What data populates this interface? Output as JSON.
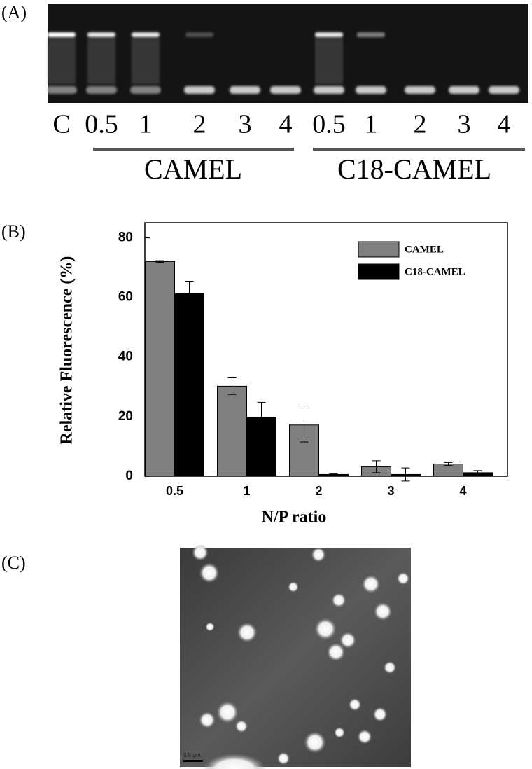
{
  "panel_labels": [
    "(A)",
    "(B)",
    "(C)"
  ],
  "gel": {
    "lanes": [
      "C",
      "0.5",
      "1",
      "2",
      "3",
      "4",
      "0.5",
      "1",
      "2",
      "3",
      "4"
    ],
    "groups": [
      "CAMEL",
      "C18-CAMEL"
    ]
  },
  "chart_data": {
    "type": "bar",
    "categories": [
      "0.5",
      "1",
      "2",
      "3",
      "4"
    ],
    "x_label": "N/P ratio",
    "y_label": "Relative Fluorescence  (%)",
    "series": [
      {
        "name": "CAMEL",
        "color": "#808080",
        "values": [
          72,
          30.2,
          17.2,
          3.2,
          4.1
        ],
        "errors": [
          0.3,
          2.8,
          5.7,
          2,
          0.5
        ]
      },
      {
        "name": "C18-CAMEL",
        "color": "#000000",
        "values": [
          61.2,
          19.8,
          0.6,
          0.6,
          1.2
        ],
        "errors": [
          4.2,
          5,
          0.2,
          2.2,
          0.7
        ]
      }
    ],
    "ylim": [
      0,
      85
    ],
    "yticks": [
      0,
      20,
      40,
      60,
      80
    ],
    "legend": "upper right"
  },
  "micrograph": {
    "scale_bar": "0.5 μm"
  }
}
